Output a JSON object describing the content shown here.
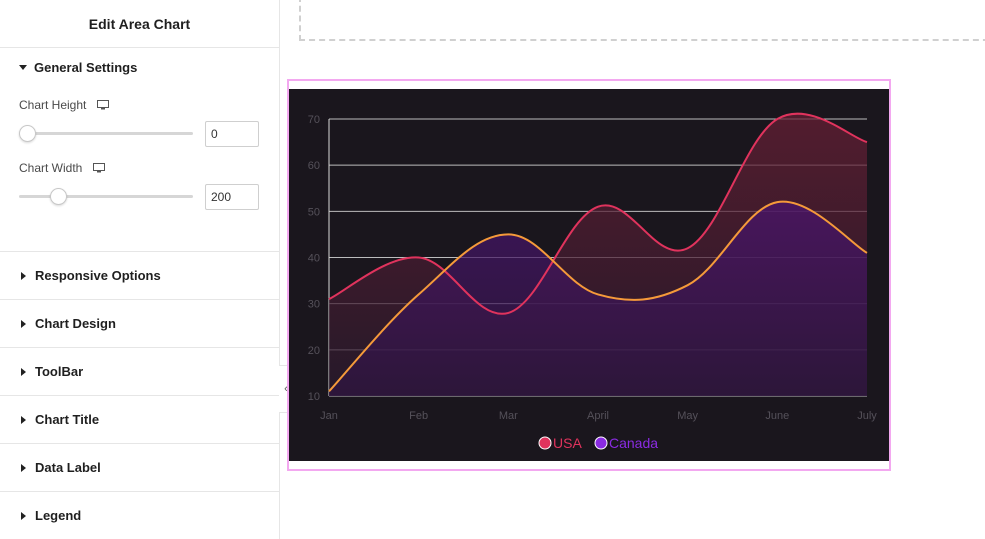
{
  "panel": {
    "title": "Edit Area Chart",
    "general": {
      "label": "General Settings",
      "chart_height_label": "Chart Height",
      "chart_height_value": "0",
      "chart_height_level": 0.0,
      "chart_width_label": "Chart Width",
      "chart_width_value": "200",
      "chart_width_level": 0.2
    },
    "sections": [
      {
        "label": "Responsive Options"
      },
      {
        "label": "Chart Design"
      },
      {
        "label": "ToolBar"
      },
      {
        "label": "Chart Title"
      },
      {
        "label": "Data Label"
      },
      {
        "label": "Legend"
      }
    ],
    "collapse_glyph": "‹"
  },
  "chart_data": {
    "type": "area",
    "categories": [
      "Jan",
      "Feb",
      "Mar",
      "April",
      "May",
      "June",
      "July"
    ],
    "ylim": [
      10,
      70
    ],
    "yticks": [
      10,
      20,
      30,
      40,
      50,
      60,
      70
    ],
    "grid": true,
    "legend_position": "bottom",
    "series": [
      {
        "name": "USA",
        "values": [
          31,
          40,
          28,
          51,
          42,
          70,
          65
        ],
        "color": "#e0335d",
        "fill_top": "#6a1f35",
        "fill_bottom": "#2a1a2e"
      },
      {
        "name": "Canada",
        "values": [
          11,
          32,
          45,
          32,
          34,
          52,
          41
        ],
        "color": "#f59a3a",
        "fill_top": "#4a1470",
        "fill_bottom": "#2f1540"
      }
    ],
    "legend_colors": {
      "USA": "#e0335d",
      "Canada": "#8a2be2"
    },
    "axis_text_color": "#55515a",
    "grid_color": "#d9d9d9"
  }
}
